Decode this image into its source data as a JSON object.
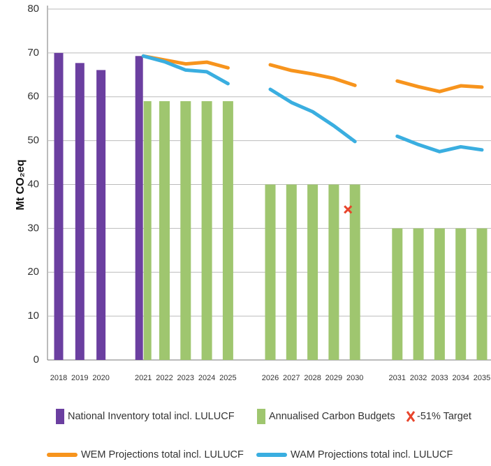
{
  "chart_data": {
    "type": "bar",
    "y_label": "Mt CO₂eq",
    "categories": [
      "2018",
      "2019",
      "2020",
      null,
      "2021",
      "2022",
      "2023",
      "2024",
      "2025",
      null,
      "2026",
      "2027",
      "2028",
      "2029",
      "2030",
      null,
      "2031",
      "2032",
      "2033",
      "2034",
      "2035"
    ],
    "ylim": [
      0,
      80
    ],
    "yticks": [
      0,
      10,
      20,
      30,
      40,
      50,
      60,
      70,
      80
    ],
    "grid": true,
    "series": [
      {
        "name": "National Inventory total incl. LULUCF",
        "type": "bar",
        "color": "#6b3fa0",
        "values": [
          70,
          67.7,
          66.1,
          null,
          69.3,
          null,
          null,
          null,
          null,
          null,
          null,
          null,
          null,
          null,
          null,
          null,
          null,
          null,
          null,
          null,
          null
        ]
      },
      {
        "name": "Annualised Carbon Budgets",
        "type": "bar",
        "color": "#9fc66f",
        "values": [
          null,
          null,
          null,
          null,
          59,
          59,
          59,
          59,
          59,
          null,
          40,
          40,
          40,
          40,
          40,
          null,
          30,
          30,
          30,
          30,
          30
        ]
      },
      {
        "name": "-51% Target",
        "type": "marker",
        "color": "#e8452c",
        "values": [
          null,
          null,
          null,
          null,
          null,
          null,
          null,
          null,
          null,
          null,
          null,
          null,
          null,
          null,
          34.3,
          null,
          null,
          null,
          null,
          null,
          null
        ]
      },
      {
        "name": "WEM Projections total incl. LULUCF",
        "type": "line",
        "color": "#f7941d",
        "values": [
          null,
          null,
          null,
          null,
          69.3,
          68.4,
          67.5,
          67.9,
          66.6,
          null,
          67.3,
          66,
          65.2,
          64.2,
          62.6,
          null,
          63.6,
          62.3,
          61.2,
          62.5,
          62.2
        ]
      },
      {
        "name": "WAM Projections total incl. LULUCF",
        "type": "line",
        "color": "#3aaee0",
        "values": [
          null,
          null,
          null,
          null,
          69.3,
          68,
          66.1,
          65.7,
          63,
          null,
          61.7,
          58.7,
          56.6,
          53.4,
          49.8,
          null,
          51,
          49.1,
          47.5,
          48.6,
          47.9
        ]
      }
    ]
  }
}
